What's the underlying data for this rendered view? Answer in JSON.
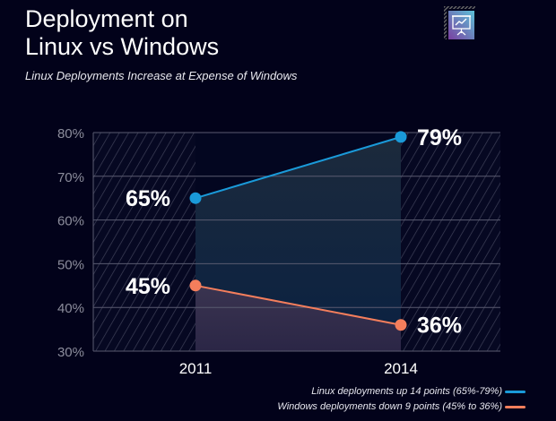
{
  "header": {
    "title_line1": "Deployment on",
    "title_line2": "Linux vs Windows",
    "subtitle": "Linux Deployments Increase at Expense of Windows",
    "icon": "presentation-chart-icon"
  },
  "chart_data": {
    "type": "line",
    "title": "",
    "xlabel": "",
    "ylabel": "",
    "categories": [
      "2011",
      "2014"
    ],
    "ylim": [
      30,
      80
    ],
    "yticks": [
      "30%",
      "40%",
      "50%",
      "60%",
      "70%",
      "80%"
    ],
    "grid": true,
    "legend_position": "bottom-right",
    "series": [
      {
        "name": "Linux deployments up 14 points (65%-79%)",
        "values": [
          65,
          79
        ],
        "labels": [
          "65%",
          "79%"
        ],
        "color": "#1a9ad9"
      },
      {
        "name": "Windows deployments down 9 points (45% to 36%)",
        "values": [
          45,
          36
        ],
        "labels": [
          "45%",
          "36%"
        ],
        "color": "#f47e5c"
      }
    ]
  }
}
